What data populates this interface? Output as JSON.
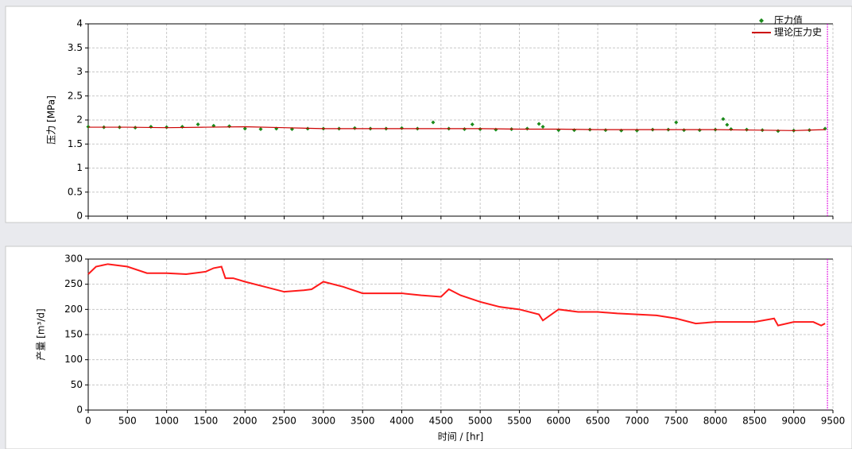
{
  "chart_data": [
    {
      "type": "scatter",
      "y_label": "压力 [MPa]",
      "xlim": [
        0,
        9500
      ],
      "xticks": [
        0,
        500,
        1000,
        1500,
        2000,
        2500,
        3000,
        3500,
        4000,
        4500,
        5000,
        5500,
        6000,
        6500,
        7000,
        7500,
        8000,
        8500,
        9000,
        9500
      ],
      "xtick_labels": false,
      "ylim": [
        0,
        4
      ],
      "yticks": [
        0,
        0.5,
        1,
        1.5,
        2,
        2.5,
        3,
        3.5,
        4
      ],
      "grid": true,
      "legend": "top-right",
      "marker_line": {
        "value": 9430,
        "color": "#e000e0"
      },
      "series": [
        {
          "name": "压力值",
          "mode": "markers",
          "color": "#1a8a1a",
          "x": [
            0,
            200,
            400,
            600,
            800,
            1000,
            1200,
            1400,
            1600,
            1800,
            2000,
            2200,
            2400,
            2600,
            2800,
            3000,
            3200,
            3400,
            3600,
            3800,
            4000,
            4200,
            4400,
            4600,
            4800,
            4900,
            5000,
            5200,
            5400,
            5600,
            5750,
            5800,
            6000,
            6200,
            6400,
            6600,
            6800,
            7000,
            7200,
            7400,
            7500,
            7600,
            7800,
            8000,
            8100,
            8150,
            8200,
            8400,
            8600,
            8800,
            9000,
            9200,
            9400
          ],
          "values": [
            1.86,
            1.85,
            1.85,
            1.84,
            1.86,
            1.85,
            1.86,
            1.91,
            1.88,
            1.87,
            1.82,
            1.81,
            1.82,
            1.81,
            1.82,
            1.82,
            1.82,
            1.83,
            1.82,
            1.82,
            1.83,
            1.82,
            1.95,
            1.82,
            1.81,
            1.91,
            1.81,
            1.8,
            1.81,
            1.82,
            1.92,
            1.86,
            1.79,
            1.79,
            1.8,
            1.79,
            1.78,
            1.78,
            1.8,
            1.8,
            1.95,
            1.79,
            1.79,
            1.8,
            2.02,
            1.9,
            1.81,
            1.8,
            1.79,
            1.77,
            1.78,
            1.79,
            1.82
          ]
        },
        {
          "name": "理论压力史",
          "mode": "line",
          "color": "#cc0000",
          "x": [
            0,
            500,
            1000,
            1500,
            2000,
            2500,
            3000,
            3500,
            4000,
            4500,
            5000,
            5500,
            6000,
            6500,
            7000,
            7500,
            8000,
            8500,
            9000,
            9400
          ],
          "values": [
            1.85,
            1.85,
            1.84,
            1.85,
            1.86,
            1.84,
            1.82,
            1.82,
            1.82,
            1.82,
            1.82,
            1.81,
            1.81,
            1.8,
            1.8,
            1.8,
            1.8,
            1.79,
            1.78,
            1.8
          ]
        }
      ]
    },
    {
      "type": "line",
      "y_label": "产量 [m³/d]",
      "x_label": "时间 / [hr]",
      "xlim": [
        0,
        9500
      ],
      "xticks": [
        0,
        500,
        1000,
        1500,
        2000,
        2500,
        3000,
        3500,
        4000,
        4500,
        5000,
        5500,
        6000,
        6500,
        7000,
        7500,
        8000,
        8500,
        9000,
        9500
      ],
      "xtick_labels": true,
      "ylim": [
        0,
        300
      ],
      "yticks": [
        0,
        50,
        100,
        150,
        200,
        250,
        300
      ],
      "grid": true,
      "marker_line": {
        "value": 9430,
        "color": "#e000e0"
      },
      "series": [
        {
          "mode": "line",
          "color": "#ff1a1a",
          "x": [
            0,
            100,
            250,
            500,
            750,
            1000,
            1250,
            1500,
            1600,
            1700,
            1750,
            1850,
            2000,
            2250,
            2500,
            2750,
            2850,
            3000,
            3250,
            3500,
            3750,
            4000,
            4250,
            4500,
            4600,
            4750,
            5000,
            5250,
            5500,
            5750,
            5800,
            6000,
            6250,
            6500,
            6750,
            7000,
            7250,
            7500,
            7750,
            8000,
            8250,
            8500,
            8750,
            8800,
            9000,
            9250,
            9350,
            9400
          ],
          "values": [
            270,
            285,
            290,
            285,
            272,
            272,
            270,
            275,
            282,
            285,
            262,
            262,
            255,
            245,
            235,
            238,
            240,
            255,
            245,
            232,
            232,
            232,
            228,
            225,
            240,
            228,
            215,
            205,
            200,
            190,
            178,
            200,
            195,
            195,
            192,
            190,
            188,
            182,
            172,
            175,
            175,
            175,
            182,
            168,
            175,
            175,
            168,
            172
          ]
        }
      ]
    }
  ]
}
